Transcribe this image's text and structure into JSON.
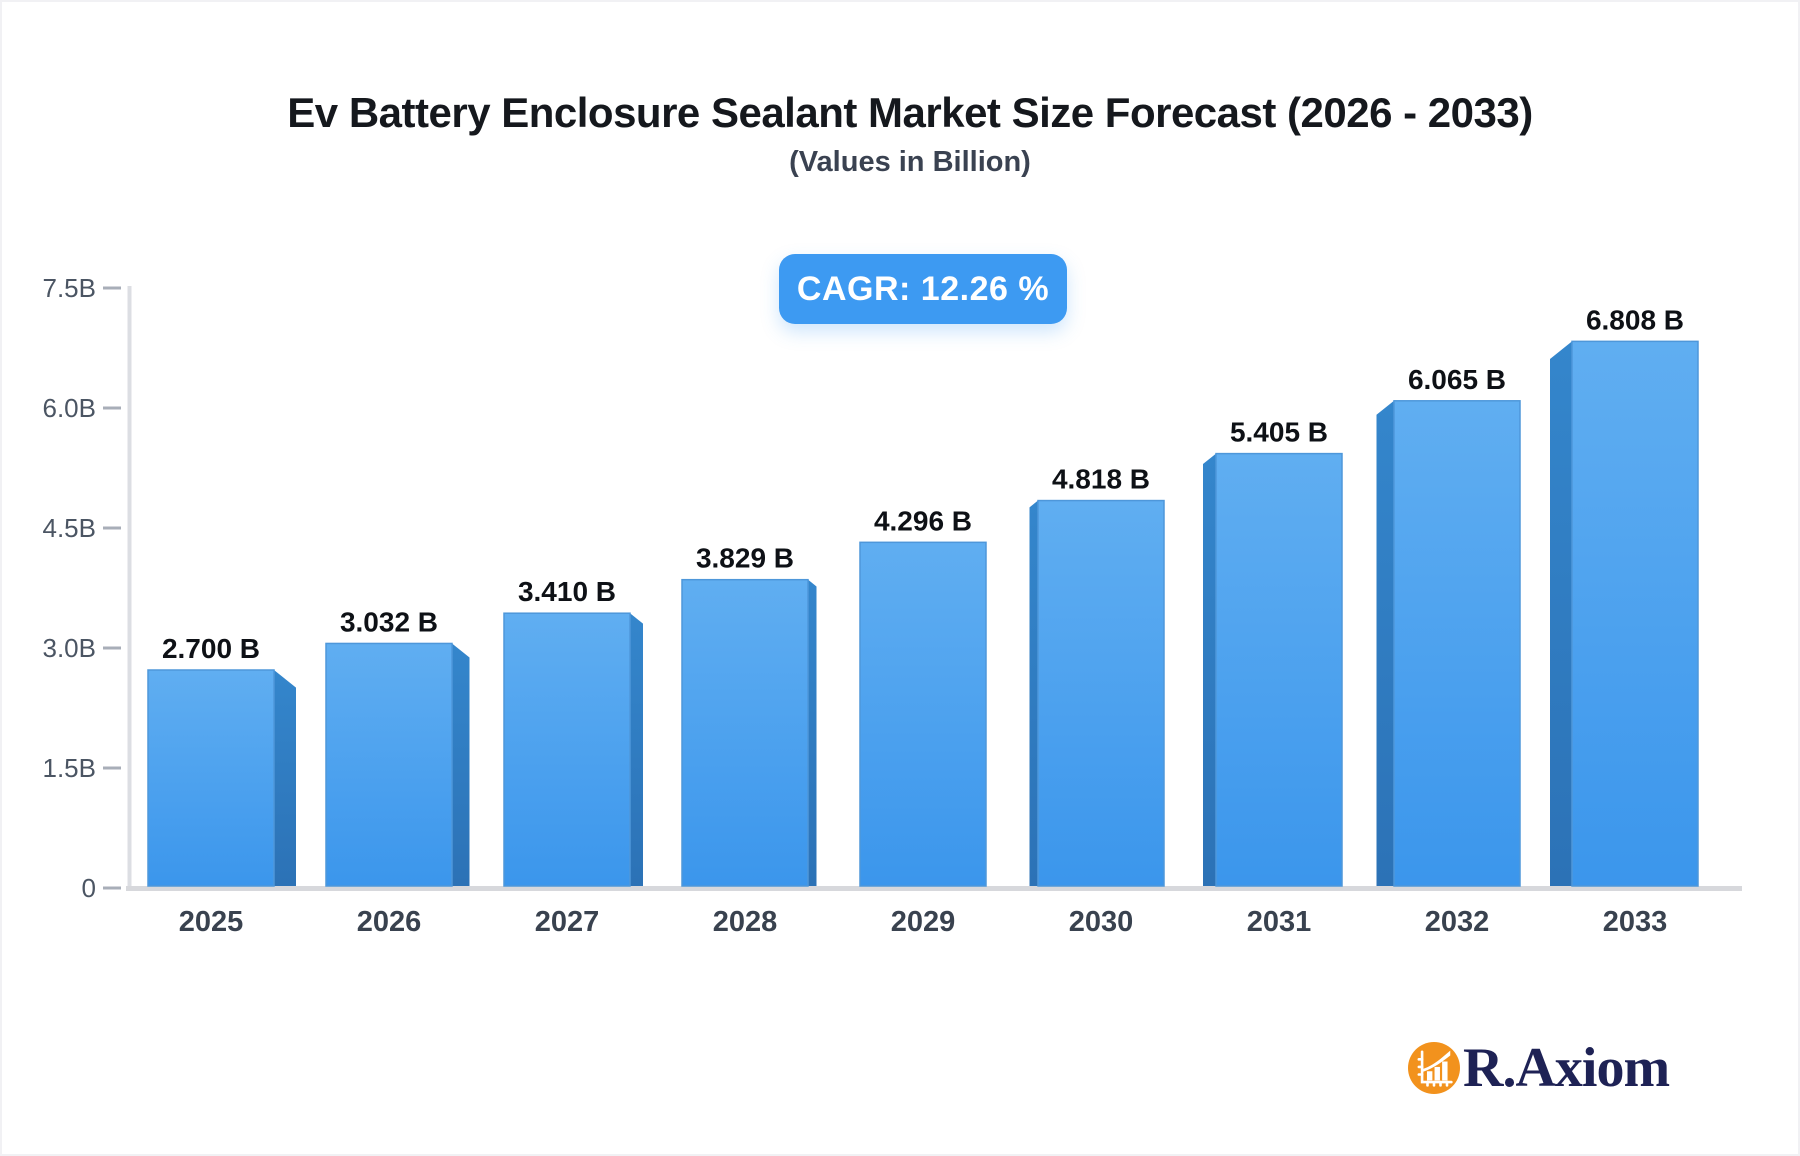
{
  "chart_data": {
    "type": "bar",
    "title": "Ev Battery Enclosure Sealant Market Size Forecast (2026 - 2033)",
    "subtitle": "(Values in Billion)",
    "cagr_label": "CAGR: 12.26 %",
    "categories": [
      "2025",
      "2026",
      "2027",
      "2028",
      "2029",
      "2030",
      "2031",
      "2032",
      "2033"
    ],
    "values": [
      2.7,
      3.032,
      3.41,
      3.829,
      4.296,
      4.818,
      5.405,
      6.065,
      6.808
    ],
    "value_labels": [
      "2.700 B",
      "3.032 B",
      "3.410 B",
      "3.829 B",
      "4.296 B",
      "4.818 B",
      "5.405 B",
      "6.065 B",
      "6.808 B"
    ],
    "xlabel": "",
    "ylabel": "",
    "ylim": [
      0,
      7.5
    ],
    "yticks": [
      0,
      1.5,
      3.0,
      4.5,
      6.0,
      7.5
    ],
    "ytick_labels": [
      "0",
      "1.5B",
      "3.0B",
      "4.5B",
      "6.0B",
      "7.5B"
    ],
    "grid": false,
    "legend": null,
    "units": "Billion USD"
  },
  "logo": {
    "text": "R.Axiom",
    "icon": "bar-chart-growth-icon"
  },
  "colors": {
    "badge_bg": "#3d9af2",
    "badge_text": "#ffffff",
    "bar_face_top": "#60aef1",
    "bar_face_bottom": "#3b96ec",
    "bar_side_top": "#3486cc",
    "bar_side_bottom": "#2c72b6",
    "bar_edge": "#4e97da",
    "axis_line": "#dcdee3",
    "baseline": "#d7d8dc",
    "tick_dash": "#a8aeb8",
    "ytick_text": "#4b5563",
    "xtick_text": "#39424f",
    "value_text": "#0e1116",
    "title_text": "#15181d",
    "subtitle_text": "#3a4251",
    "logo_orange": "#f2921d",
    "logo_navy": "#1e2255"
  }
}
